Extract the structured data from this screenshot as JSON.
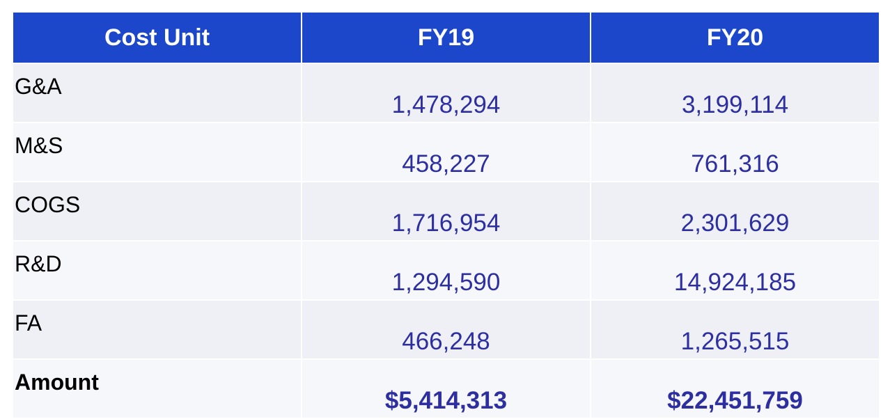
{
  "table": {
    "headers": [
      "Cost Unit",
      "FY19",
      "FY20"
    ],
    "rows": [
      {
        "label": "G&A",
        "fy19": "1,478,294",
        "fy20": "3,199,114"
      },
      {
        "label": "M&S",
        "fy19": "458,227",
        "fy20": "761,316"
      },
      {
        "label": "COGS",
        "fy19": "1,716,954",
        "fy20": "2,301,629"
      },
      {
        "label": "R&D",
        "fy19": "1,294,590",
        "fy20": "14,924,185"
      },
      {
        "label": "FA",
        "fy19": "466,248",
        "fy20": "1,265,515"
      }
    ],
    "total": {
      "label": "Amount",
      "fy19": "$5,414,313",
      "fy20": "$22,451,759"
    }
  },
  "colors": {
    "header_bg": "#1c47cb",
    "header_text": "#ffffff",
    "value_text": "#2d2fa0",
    "row_odd_bg": "#eef0f6",
    "row_even_bg": "#f6f7fb"
  }
}
